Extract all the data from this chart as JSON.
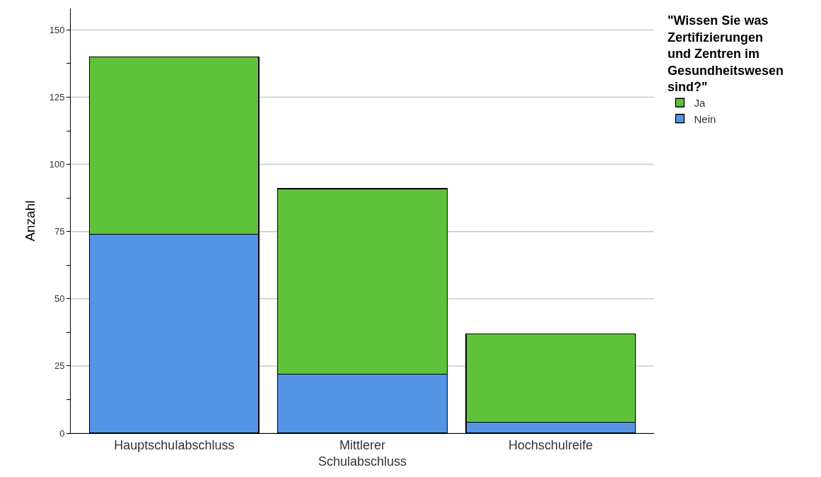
{
  "chart_data": {
    "type": "bar",
    "stacked": true,
    "ylabel": "Anzahl",
    "legend_title": "\"Wissen Sie was Zertifizierungen und Zentren im Gesundheitswesen sind?\"",
    "categories": [
      "Hauptschulabschluss",
      "Mittlerer Schulabschluss",
      "Hochschulreife"
    ],
    "series": [
      {
        "name": "Nein",
        "color": "#5394e4",
        "values": [
          74,
          22,
          4
        ]
      },
      {
        "name": "Ja",
        "color": "#5ec23a",
        "values": [
          66,
          69,
          33
        ]
      }
    ],
    "ylim": [
      0,
      158
    ],
    "yticks": [
      0,
      {
        "value": 12.5,
        "label": null
      },
      25,
      {
        "value": 37.5,
        "label": null
      },
      50,
      {
        "value": 62.5,
        "label": null
      },
      75,
      {
        "value": 87.5,
        "label": null
      },
      100,
      {
        "value": 112.5,
        "label": null
      },
      125,
      {
        "value": 137.5,
        "label": null
      },
      150
    ],
    "grid": "y",
    "legend": "top right"
  }
}
